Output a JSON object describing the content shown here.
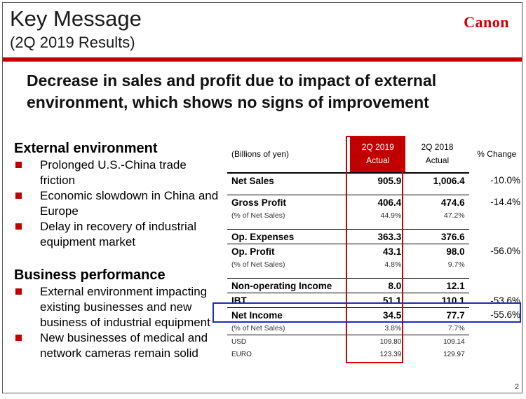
{
  "header": {
    "title": "Key Message",
    "subtitle": "(2Q 2019 Results)",
    "logo": "Canon"
  },
  "headline": "Decrease in sales and profit due to impact of external environment, which shows no signs of improvement",
  "external": {
    "title": "External environment",
    "bullets": [
      "Prolonged U.S.-China trade friction",
      "Economic slowdown in China and Europe",
      "Delay in recovery of industrial equipment market"
    ]
  },
  "business": {
    "title": "Business performance",
    "bullets": [
      "External environment impacting existing businesses and new business of industrial equipment",
      "New businesses of medical and network cameras remain solid"
    ]
  },
  "table": {
    "unit": "(Billions of yen)",
    "col1_line1": "2Q 2019",
    "col1_line2": "Actual",
    "col2_line1": "2Q 2018",
    "col2_line2": "Actual",
    "col3": "% Change",
    "rows": {
      "net_sales": {
        "label": "Net Sales",
        "v1": "905.9",
        "v2": "1,006.4",
        "chg": "-10.0%"
      },
      "gross_profit": {
        "label": "Gross Profit",
        "v1": "406.4",
        "v2": "474.6",
        "chg": "-14.4%"
      },
      "gp_pct": {
        "label": "(% of Net Sales)",
        "v1": "44.9%",
        "v2": "47.2%"
      },
      "op_exp": {
        "label": "Op. Expenses",
        "v1": "363.3",
        "v2": "376.6"
      },
      "op_profit": {
        "label": "Op. Profit",
        "v1": "43.1",
        "v2": "98.0",
        "chg": "-56.0%"
      },
      "op_pct": {
        "label": "(% of Net Sales)",
        "v1": "4.8%",
        "v2": "9.7%"
      },
      "non_op": {
        "label": "Non-operating Income",
        "v1": "8.0",
        "v2": "12.1"
      },
      "ibt": {
        "label": "IBT",
        "v1": "51.1",
        "v2": "110.1",
        "chg": "-53.6%"
      },
      "net_income": {
        "label": "Net Income",
        "v1": "34.5",
        "v2": "77.7",
        "chg": "-55.6%"
      },
      "ni_pct": {
        "label": "(% of Net Sales)",
        "v1": "3.8%",
        "v2": "7.7%"
      },
      "usd": {
        "label": "USD",
        "v1": "109.80",
        "v2": "109.14"
      },
      "euro": {
        "label": "EURO",
        "v1": "123.39",
        "v2": "129.97"
      }
    }
  },
  "page_number": "2",
  "colors": {
    "accent_red": "#c00000",
    "highlight_blue": "#1f2db0"
  }
}
